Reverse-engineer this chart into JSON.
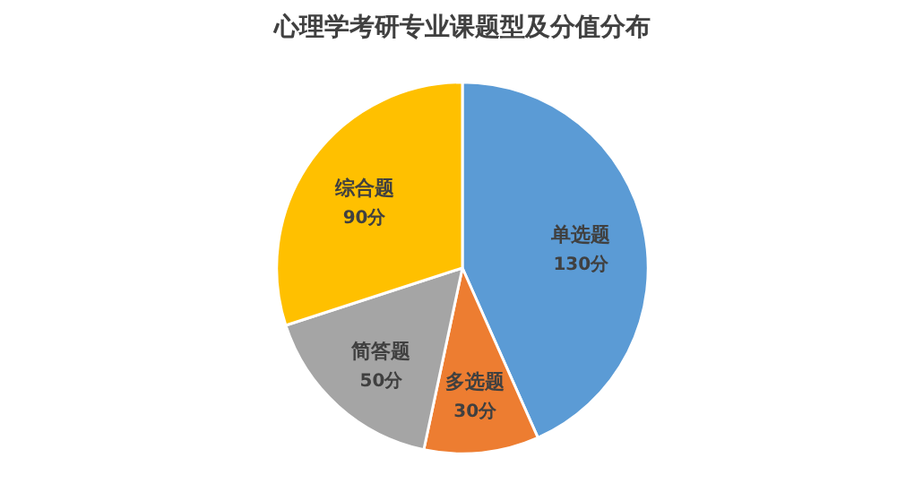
{
  "chart_data": {
    "type": "pie",
    "title": "心理学考研专业课题型及分值分布",
    "categories": [
      "单选题",
      "多选题",
      "简答题",
      "综合题"
    ],
    "values": [
      130,
      30,
      50,
      90
    ],
    "colors": [
      "#5b9bd5",
      "#ed7d31",
      "#a5a5a5",
      "#ffc000"
    ],
    "value_labels": [
      "130分",
      "30分",
      "50分",
      "90分"
    ],
    "legend": false
  }
}
